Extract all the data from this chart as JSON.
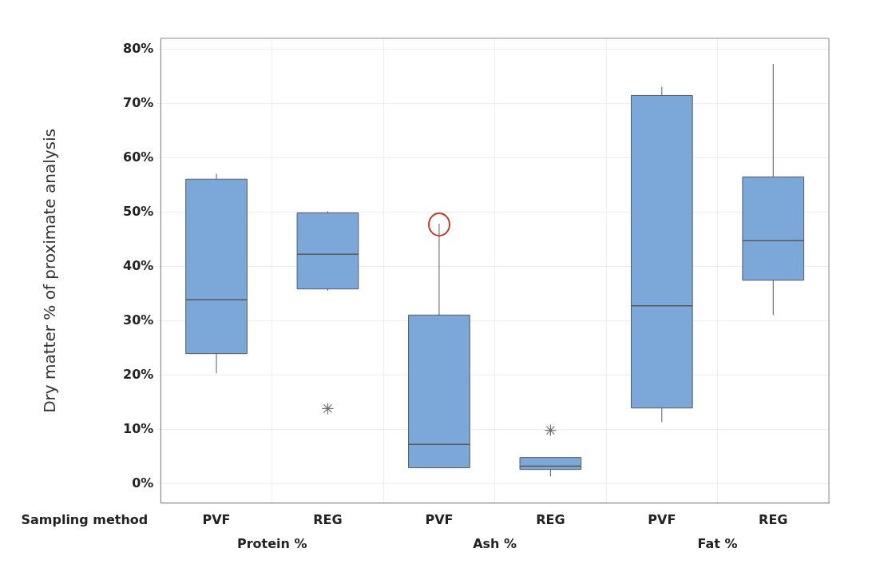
{
  "chart_data": {
    "type": "box",
    "ylabel": "Dry matter % of proximate analysis",
    "categories": [
      "PVF",
      "REG",
      "PVF",
      "REG",
      "PVF",
      "REG"
    ],
    "color": "#7ba7d9",
    "boxes": [
      {
        "low": 20.4,
        "q1": 24.0,
        "median": 33.9,
        "q3": 56.1,
        "high": 57.1
      },
      {
        "low": 35.6,
        "q1": 35.9,
        "median": 42.3,
        "q3": 49.9,
        "high": 50.2,
        "outliers": [
          13.9
        ]
      },
      {
        "low": 3.0,
        "q1": 3.0,
        "median": 7.3,
        "q3": 31.1,
        "high": 47.9
      },
      {
        "low": 1.4,
        "q1": 2.7,
        "median": 3.3,
        "q3": 4.9,
        "high": 4.9,
        "outliers": [
          9.9
        ]
      },
      {
        "low": 11.4,
        "q1": 14.0,
        "median": 32.8,
        "q3": 71.5,
        "high": 73.1
      },
      {
        "low": 31.1,
        "q1": 37.5,
        "median": 44.8,
        "q3": 56.5,
        "high": 77.3
      }
    ],
    "ylim": [
      -3.5,
      82
    ],
    "yticks": [
      {
        "value": 0,
        "label": "0%"
      },
      {
        "value": 10,
        "label": "10%"
      },
      {
        "value": 20,
        "label": "20%"
      },
      {
        "value": 30,
        "label": "30%"
      },
      {
        "value": 40,
        "label": "40%"
      },
      {
        "value": 50,
        "label": "50%"
      },
      {
        "value": 60,
        "label": "60%"
      },
      {
        "value": 70,
        "label": "70%"
      },
      {
        "value": 80,
        "label": "80%"
      }
    ],
    "grid": true,
    "legend": false,
    "annotations": [
      "Sampling method",
      "Protein %",
      "Ash %",
      "Fat %"
    ]
  }
}
